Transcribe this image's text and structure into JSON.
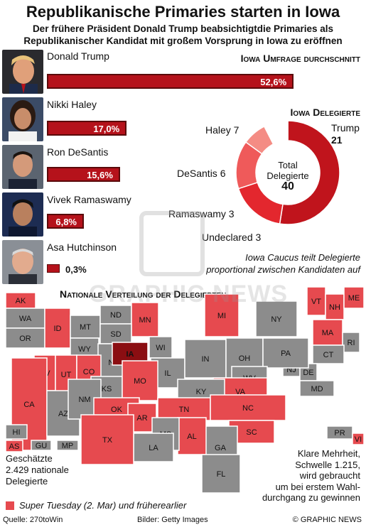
{
  "header": {
    "title": "Republikanische Primaries starten in Iowa",
    "subtitle_line1": "Der frühere Präsident Donald Trump beabsichtigtdie Primaries als",
    "subtitle_line2": "Republikanischer Kandidat mit großem Vorsprung in Iowa zu eröffnen"
  },
  "candidates": [
    {
      "name": "Donald Trump",
      "value_label": "52,6%"
    },
    {
      "name": "Nikki Haley",
      "value_label": "17,0%"
    },
    {
      "name": "Ron DeSantis",
      "value_label": "15,6%"
    },
    {
      "name": "Vivek Ramaswamy",
      "value_label": "6,8%"
    },
    {
      "name": "Asa Hutchinson",
      "value_label": "0,3%"
    }
  ],
  "poll_heading": "Iowa Umfrage durchschnitt",
  "delegates_heading": "Iowa Delegierte",
  "donut": {
    "center_label_1": "Total",
    "center_label_2": "Delegierte",
    "center_value": "40",
    "labels": {
      "trump_name": "Trump",
      "trump_value": "21",
      "haley": "Haley 7",
      "desantis": "DeSantis 6",
      "ramaswamy": "Ramaswamy 3",
      "undeclared": "Undeclared 3"
    }
  },
  "caucus_note_1": "Iowa Caucus teilt Delegierte",
  "caucus_note_2": "proportional zwischen Kandidaten auf",
  "map": {
    "heading": "Nationale Verteilung der Delegierten",
    "states": [
      "AK",
      "WA",
      "OR",
      "ID",
      "MT",
      "ND",
      "MN",
      "WI",
      "MI",
      "NY",
      "VT",
      "NH",
      "ME",
      "MA",
      "RI",
      "CT",
      "NJ",
      "DE",
      "MD",
      "WY",
      "SD",
      "NE",
      "IA",
      "IL",
      "IN",
      "OH",
      "PA",
      "WV",
      "VA",
      "NV",
      "UT",
      "CO",
      "KS",
      "MO",
      "KY",
      "CA",
      "AZ",
      "NM",
      "OK",
      "AR",
      "TN",
      "NC",
      "SC",
      "GA",
      "AL",
      "MS",
      "LA",
      "TX",
      "FL",
      "HI",
      "AS",
      "GU",
      "MP",
      "PR",
      "VI"
    ],
    "colors": {
      "super_tuesday": "#e64a4f",
      "other": "#8c8c8c",
      "iowa": "#8b0e12"
    }
  },
  "estimate_note": [
    "Geschätzte",
    "2.429 nationale",
    "Delegierte"
  ],
  "majority_note": [
    "Klare Mehrheit,",
    "Schwelle 1.215,",
    "wird gebraucht",
    "um bei erstem Wahl-",
    "durchgang zu gewinnen"
  ],
  "legend_label": "Super Tuesday (2. Mar) und früherearlier",
  "footer": {
    "source": "Quelle: 270toWin",
    "images": "Bilder: Getty Images",
    "credit": "© GRAPHIC NEWS"
  },
  "watermark": "GRAPHIC NEWS",
  "chart_data": [
    {
      "type": "bar",
      "title": "Iowa Umfrage durchschnitt",
      "categories": [
        "Donald Trump",
        "Nikki Haley",
        "Ron DeSantis",
        "Vivek Ramaswamy",
        "Asa Hutchinson"
      ],
      "values": [
        52.6,
        17.0,
        15.6,
        6.8,
        0.3
      ],
      "xlim": [
        0,
        60
      ]
    },
    {
      "type": "pie",
      "title": "Iowa Delegierte",
      "categories": [
        "Trump",
        "Haley",
        "DeSantis",
        "Ramaswamy",
        "Undeclared"
      ],
      "values": [
        21,
        7,
        6,
        3,
        3
      ],
      "colors": [
        "#c0141c",
        "#e3272e",
        "#ef5a5a",
        "#f48c84",
        "#ffffff"
      ]
    }
  ]
}
